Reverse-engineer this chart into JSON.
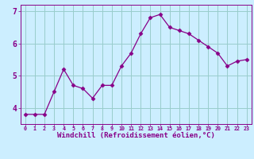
{
  "x": [
    0,
    1,
    2,
    3,
    4,
    5,
    6,
    7,
    8,
    9,
    10,
    11,
    12,
    13,
    14,
    15,
    16,
    17,
    18,
    19,
    20,
    21,
    22,
    23
  ],
  "y": [
    3.8,
    3.8,
    3.8,
    4.5,
    5.2,
    4.7,
    4.6,
    4.3,
    4.7,
    4.7,
    5.3,
    5.7,
    6.3,
    6.8,
    6.9,
    6.5,
    6.4,
    6.3,
    6.1,
    5.9,
    5.7,
    5.3,
    5.45,
    5.5
  ],
  "line_color": "#880088",
  "marker": "D",
  "marker_size": 2.5,
  "bg_color": "#cceeff",
  "grid_color": "#99cccc",
  "xlabel": "Windchill (Refroidissement éolien,°C)",
  "xlabel_color": "#880088",
  "xlim": [
    -0.5,
    23.5
  ],
  "ylim": [
    3.5,
    7.2
  ],
  "yticks": [
    4,
    5,
    6,
    7
  ],
  "xticks": [
    0,
    1,
    2,
    3,
    4,
    5,
    6,
    7,
    8,
    9,
    10,
    11,
    12,
    13,
    14,
    15,
    16,
    17,
    18,
    19,
    20,
    21,
    22,
    23
  ],
  "tick_color": "#880088",
  "spine_color": "#880088",
  "xlabel_fontsize": 6.5,
  "xtick_fontsize": 4.8,
  "ytick_fontsize": 7.0
}
